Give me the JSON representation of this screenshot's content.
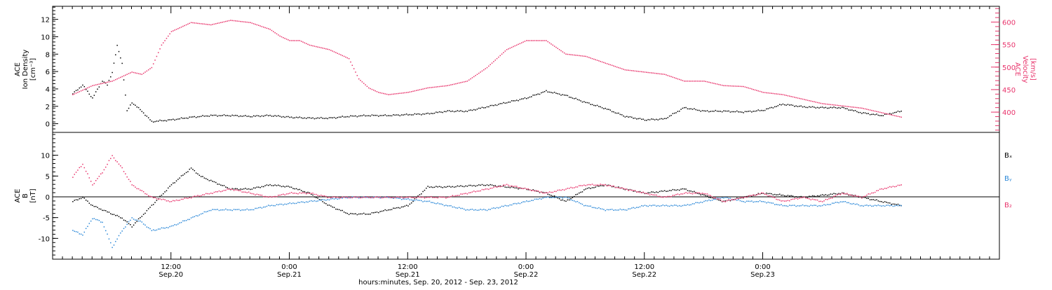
{
  "chart_data": [
    {
      "type": "scatter",
      "panel": "top",
      "ylabel_lines": [
        "ACE",
        "Ion Density",
        "[cm⁻³]"
      ],
      "ylim": [
        -1,
        13.5
      ],
      "yticks": [
        0,
        2,
        4,
        6,
        8,
        10,
        12
      ],
      "y2label_lines": [
        "ACE",
        "Velocity",
        "[km/s]"
      ],
      "y2lim": [
        355,
        635
      ],
      "y2ticks": [
        400,
        450,
        500,
        550,
        600
      ],
      "colors": {
        "density": "#000000",
        "velocity": "#e8336b"
      },
      "series": [
        {
          "axis": "left",
          "x": [
            2,
            3,
            4,
            5,
            5.5,
            6,
            6.5,
            7,
            7.5,
            8,
            9,
            10,
            12,
            14,
            16,
            18,
            20,
            22,
            24,
            26,
            28,
            30,
            32,
            34,
            36,
            38,
            40,
            42,
            44,
            46,
            48,
            50,
            52,
            54,
            56,
            58,
            60,
            62,
            64,
            66,
            68,
            70,
            72,
            74,
            76,
            78,
            80,
            82,
            84,
            86
          ],
          "y": [
            3.5,
            4.5,
            3,
            5,
            4.5,
            6,
            9,
            7,
            1.5,
            2.5,
            1.5,
            0.3,
            0.5,
            0.8,
            1,
            1,
            0.9,
            1,
            0.8,
            0.7,
            0.7,
            0.9,
            1,
            1,
            1.1,
            1.2,
            1.5,
            1.5,
            2,
            2.5,
            3,
            3.8,
            3.3,
            2.5,
            1.8,
            0.9,
            0.5,
            0.6,
            1.9,
            1.5,
            1.5,
            1.4,
            1.6,
            2.3,
            2,
            1.9,
            1.9,
            1.3,
            1,
            1.5
          ]
        },
        {
          "axis": "right",
          "x": [
            2,
            4,
            6,
            7,
            8,
            9,
            10,
            11,
            12,
            14,
            16,
            18,
            20,
            22,
            23,
            24,
            25,
            26,
            28,
            30,
            31,
            32,
            33,
            34,
            36,
            38,
            40,
            42,
            44,
            46,
            48,
            50,
            52,
            54,
            56,
            58,
            60,
            62,
            64,
            66,
            68,
            70,
            72,
            74,
            76,
            78,
            80,
            82,
            84,
            86
          ],
          "y": [
            440,
            460,
            470,
            480,
            490,
            485,
            500,
            550,
            580,
            600,
            595,
            605,
            600,
            585,
            570,
            560,
            560,
            550,
            540,
            520,
            475,
            455,
            445,
            440,
            445,
            455,
            460,
            470,
            500,
            540,
            560,
            560,
            530,
            525,
            510,
            495,
            490,
            485,
            470,
            470,
            460,
            458,
            445,
            440,
            430,
            420,
            415,
            410,
            400,
            390
          ]
        }
      ]
    },
    {
      "type": "scatter",
      "panel": "bottom",
      "ylabel_lines": [
        "ACE",
        "B",
        "[nT]"
      ],
      "ylim": [
        -15,
        15.5
      ],
      "yticks": [
        -10,
        -5,
        0,
        5,
        10
      ],
      "legend": [
        "Bₓ",
        "Bᵧ",
        "B₂"
      ],
      "legend_colors": [
        "#000000",
        "#2b88d8",
        "#e8336b"
      ],
      "series": [
        {
          "name": "Bx",
          "x": [
            2,
            3,
            4,
            5,
            6,
            7,
            8,
            10,
            12,
            14,
            15,
            18,
            20,
            22,
            24,
            26,
            28,
            30,
            32,
            34,
            36,
            38,
            40,
            44,
            48,
            50,
            52,
            54,
            56,
            60,
            64,
            68,
            72,
            76,
            80,
            84,
            86
          ],
          "y": [
            -1,
            0,
            -2,
            -3,
            -4,
            -5,
            -7,
            -2,
            3,
            7,
            5,
            2,
            2,
            3,
            2.5,
            1,
            -2,
            -4,
            -4,
            -3,
            -2,
            2.5,
            2.5,
            3,
            2,
            1,
            -1,
            2,
            3,
            1,
            2,
            -1,
            1,
            0,
            1,
            -1,
            -2
          ]
        },
        {
          "name": "By",
          "x": [
            2,
            3,
            4,
            5,
            6,
            7,
            8,
            9,
            10,
            12,
            14,
            16,
            18,
            20,
            22,
            26,
            30,
            34,
            38,
            40,
            42,
            44,
            46,
            48,
            50,
            52,
            54,
            56,
            58,
            60,
            62,
            64,
            66,
            68,
            70,
            72,
            74,
            76,
            78,
            80,
            82,
            84,
            86
          ],
          "y": [
            -8,
            -9,
            -5,
            -6,
            -12,
            -8,
            -5,
            -6,
            -8,
            -7,
            -5,
            -3,
            -3,
            -3,
            -2,
            -1,
            0,
            0,
            -1,
            -2,
            -3,
            -3,
            -2,
            -1,
            0,
            0,
            -2,
            -3,
            -3,
            -2,
            -2,
            -2,
            -1,
            0,
            -1,
            -1,
            -2,
            -2,
            -2,
            -1,
            -2,
            -2,
            -2
          ]
        },
        {
          "name": "Bz",
          "x": [
            2,
            3,
            4,
            5,
            6,
            7,
            8,
            10,
            12,
            14,
            16,
            18,
            20,
            22,
            24,
            26,
            28,
            30,
            34,
            38,
            40,
            42,
            44,
            46,
            48,
            50,
            52,
            54,
            56,
            58,
            60,
            62,
            64,
            66,
            68,
            70,
            72,
            74,
            76,
            78,
            80,
            82,
            84,
            86
          ],
          "y": [
            5,
            8,
            3,
            6,
            10,
            7,
            3,
            0,
            -1,
            0,
            1,
            2,
            1,
            0,
            1,
            1,
            0,
            0,
            0,
            0,
            0,
            1,
            2,
            3,
            2,
            1,
            2,
            3,
            3,
            2,
            1,
            0,
            1,
            1,
            -1,
            0,
            1,
            -1,
            0,
            -1,
            1,
            0,
            2,
            3
          ]
        }
      ]
    }
  ],
  "axis": {
    "x_tick_labels": [
      "12:00",
      "0:00",
      "12:00",
      "0:00",
      "12:00",
      "0:00"
    ],
    "x_date_labels": [
      "Sep.20",
      "Sep.21",
      "Sep.21",
      "Sep.22",
      "Sep.22",
      "Sep.23"
    ],
    "x_title": "hours:minutes, Sep. 20, 2012 - Sep. 23, 2012",
    "x_ticks_hours": [
      12,
      24,
      36,
      48,
      60,
      72
    ],
    "x_range_hours": [
      0,
      96
    ]
  }
}
